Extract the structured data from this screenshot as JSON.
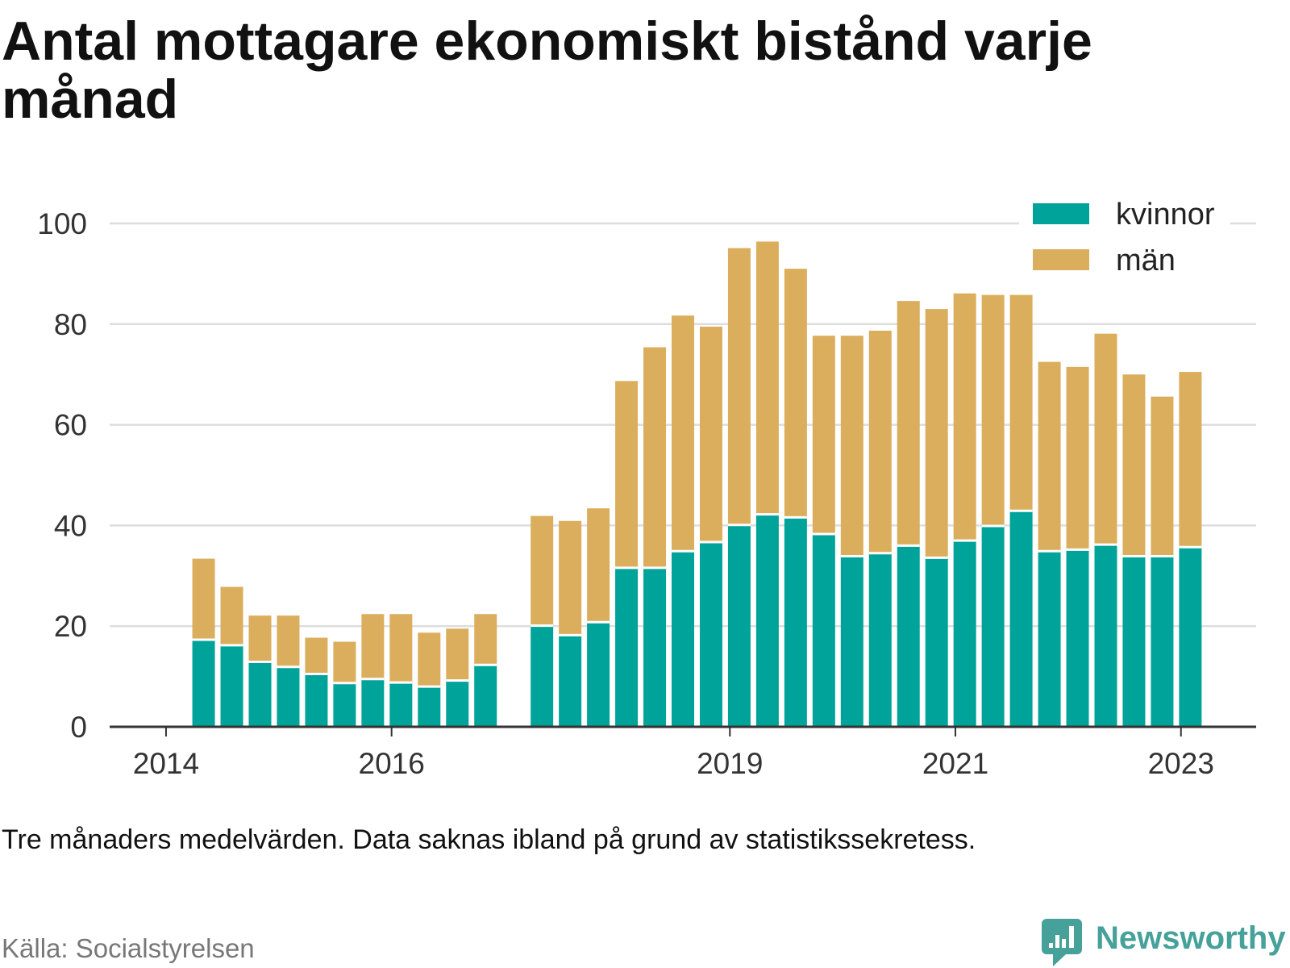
{
  "chart_data": {
    "type": "bar",
    "stacked": true,
    "title": "Antal mottagare ekonomiskt bistånd varje månad",
    "x": [
      "2014-05",
      "2014-08",
      "2014-11",
      "2015-02",
      "2015-05",
      "2015-08",
      "2015-11",
      "2016-02",
      "2016-05",
      "2016-08",
      "2016-11",
      "2017-05",
      "2017-08",
      "2017-11",
      "2018-02",
      "2018-05",
      "2018-08",
      "2018-11",
      "2019-02",
      "2019-05",
      "2019-08",
      "2019-11",
      "2020-02",
      "2020-05",
      "2020-08",
      "2020-11",
      "2021-02",
      "2021-05",
      "2021-08",
      "2021-11",
      "2022-02",
      "2022-05",
      "2022-08",
      "2022-11",
      "2023-02"
    ],
    "series": [
      {
        "name": "kvinnor",
        "color": "#00a39a",
        "values": [
          17.3,
          16.2,
          12.9,
          11.9,
          10.5,
          8.7,
          9.5,
          8.8,
          8.0,
          9.2,
          12.3,
          20.1,
          18.2,
          20.8,
          31.6,
          31.6,
          34.9,
          36.7,
          40.1,
          42.2,
          41.6,
          38.3,
          33.9,
          34.5,
          36.0,
          33.6,
          37.0,
          39.9,
          42.9,
          34.9,
          35.2,
          36.2,
          33.9,
          33.9,
          35.7
        ]
      },
      {
        "name": "män",
        "color": "#dbae5d",
        "values": [
          16.1,
          11.6,
          9.2,
          10.2,
          7.2,
          8.2,
          12.9,
          13.6,
          10.7,
          10.3,
          10.1,
          21.8,
          22.7,
          22.6,
          37.1,
          43.8,
          46.8,
          42.8,
          55.0,
          54.2,
          49.4,
          39.4,
          43.8,
          44.2,
          48.6,
          49.4,
          49.1,
          45.9,
          42.9,
          37.6,
          36.3,
          41.9,
          36.1,
          31.7,
          34.8
        ]
      }
    ],
    "xticks": [
      "2014",
      "2016",
      "2019",
      "2021",
      "2023"
    ],
    "yticks": [
      0,
      20,
      40,
      60,
      80,
      100
    ],
    "xlim": [
      "2013-07",
      "2023-09"
    ],
    "ylim": [
      0,
      100
    ],
    "grid": "horizontal",
    "legend": "top-right"
  },
  "note": "Tre månaders medelvärden. Data saknas ibland på grund av statistikssekretess.",
  "source": "Källa: Socialstyrelsen",
  "brand": {
    "name": "Newsworthy",
    "color": "#45a19a",
    "icon": "bar-chart-speech-bubble-icon"
  }
}
